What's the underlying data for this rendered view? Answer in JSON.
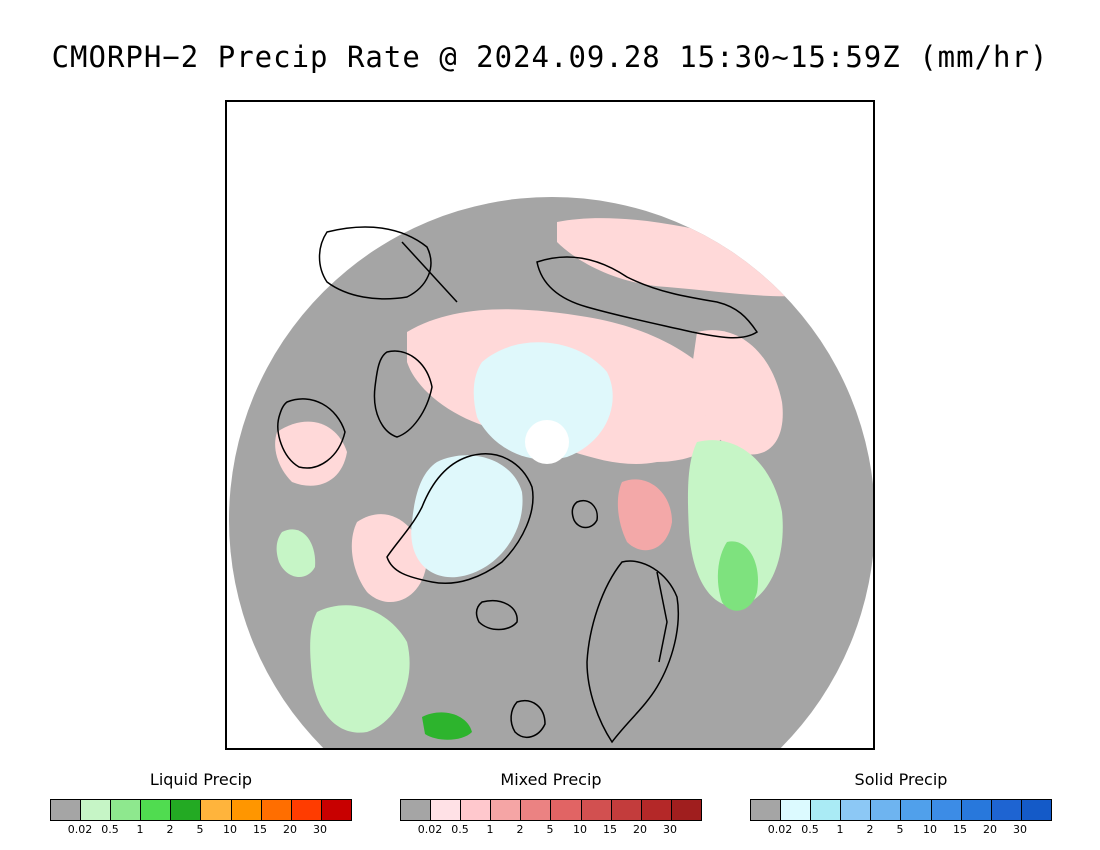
{
  "title": "CMORPH−2 Precip Rate @ 2024.09.28 15:30∼15:59Z (mm/hr)",
  "map": {
    "projection": "north polar stereographic",
    "colors": {
      "no_precip": "#a5a5a5",
      "ocean_frame": "#ffffff",
      "coastline": "#000000",
      "liquid_light": "#c6f5c6",
      "liquid_mid": "#7ee27e",
      "liquid_heavy": "#2db42d",
      "mixed_light": "#ffd9d9",
      "mixed_mid": "#f3a8a8",
      "solid_light": "#dff8fb",
      "solid_mid": "#a8e8f5"
    }
  },
  "legends": [
    {
      "title": "Liquid Precip",
      "colors": [
        "#a5a5a5",
        "#c6f5c6",
        "#8ee88e",
        "#50dc50",
        "#23aa23",
        "#ffb43c",
        "#ff9600",
        "#ff6e00",
        "#ff3c00",
        "#c80000"
      ],
      "ticks": [
        "0.02",
        "0.5",
        "1",
        "2",
        "5",
        "10",
        "15",
        "20",
        "30"
      ]
    },
    {
      "title": "Mixed Precip",
      "colors": [
        "#a5a5a5",
        "#ffe1e6",
        "#ffc8cd",
        "#f5a5a5",
        "#eb8282",
        "#e16464",
        "#d25050",
        "#c33c3c",
        "#b42828",
        "#a01e1e"
      ],
      "ticks": [
        "0.02",
        "0.5",
        "1",
        "2",
        "5",
        "10",
        "15",
        "20",
        "30"
      ]
    },
    {
      "title": "Solid Precip",
      "colors": [
        "#a5a5a5",
        "#dcfaff",
        "#aaebf5",
        "#8cc8f5",
        "#6eb4f0",
        "#50a0eb",
        "#3c8ce6",
        "#2878dc",
        "#1e64d2",
        "#145ac8"
      ],
      "ticks": [
        "0.02",
        "0.5",
        "1",
        "2",
        "5",
        "10",
        "15",
        "20",
        "30"
      ]
    }
  ]
}
